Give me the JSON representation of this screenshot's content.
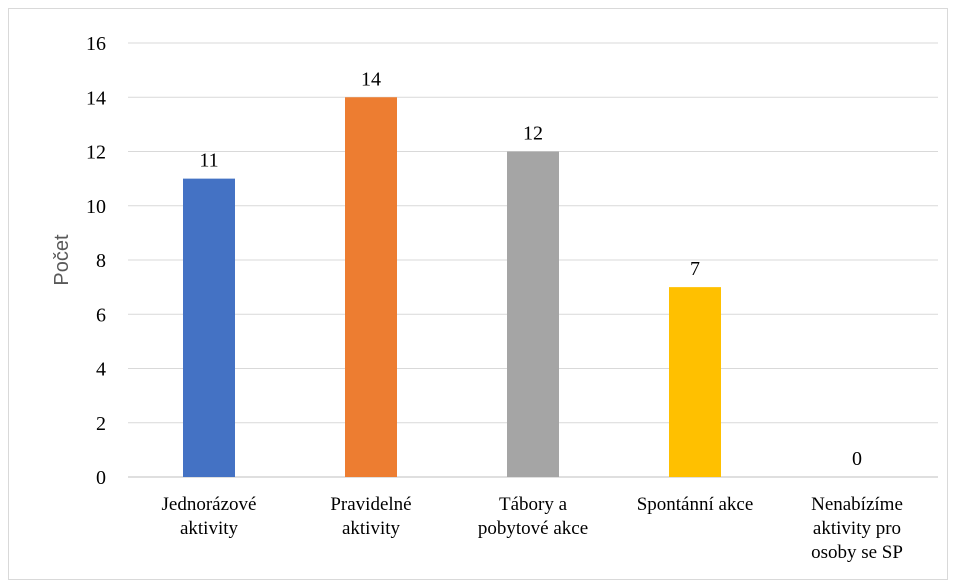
{
  "chart_data": {
    "type": "bar",
    "title": "",
    "xlabel": "",
    "ylabel": "Počet",
    "ylim": [
      0,
      16
    ],
    "yticks": [
      0,
      2,
      4,
      6,
      8,
      10,
      12,
      14,
      16
    ],
    "grid": true,
    "legend": "none",
    "categories": [
      [
        "Jednorázové",
        "aktivity"
      ],
      [
        "Pravidelné",
        "aktivity"
      ],
      [
        "Tábory a",
        "pobytové akce"
      ],
      [
        "Spontánní akce"
      ],
      [
        "Nenabízíme",
        "aktivity pro",
        "osoby se SP"
      ]
    ],
    "values": [
      11,
      14,
      12,
      7,
      0
    ],
    "colors": [
      "#4472c4",
      "#ed7d31",
      "#a5a5a5",
      "#ffc000",
      "#5b9bd5"
    ],
    "data_labels": [
      "11",
      "14",
      "12",
      "7",
      "0"
    ]
  }
}
